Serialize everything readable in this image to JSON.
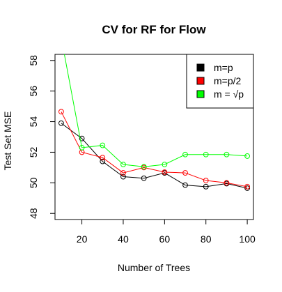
{
  "chart_data": {
    "type": "line",
    "title": "CV for RF for Flow",
    "xlabel": "Number of Trees",
    "ylabel": "Test Set MSE",
    "xlim": [
      7,
      103
    ],
    "ylim": [
      47.6,
      58.4
    ],
    "x_ticks": [
      20,
      40,
      60,
      80,
      100
    ],
    "y_ticks": [
      48,
      50,
      52,
      54,
      56,
      58
    ],
    "grid": false,
    "legend_position": "top-right",
    "x": [
      10,
      20,
      30,
      40,
      50,
      60,
      70,
      80,
      90,
      100
    ],
    "series": [
      {
        "name": "m=p",
        "color": "#000000",
        "values": [
          53.9,
          52.9,
          51.4,
          50.4,
          50.3,
          50.65,
          49.85,
          49.75,
          49.95,
          49.65
        ]
      },
      {
        "name": "m=p/2",
        "color": "#ff0000",
        "values": [
          54.65,
          52.0,
          51.65,
          50.65,
          51.0,
          50.7,
          50.65,
          50.15,
          50.0,
          49.75
        ]
      },
      {
        "name": "m = √p",
        "color": "#00ff00",
        "values": [
          59.5,
          52.3,
          52.45,
          51.2,
          51.05,
          51.2,
          51.85,
          51.85,
          51.85,
          51.75
        ]
      }
    ]
  }
}
